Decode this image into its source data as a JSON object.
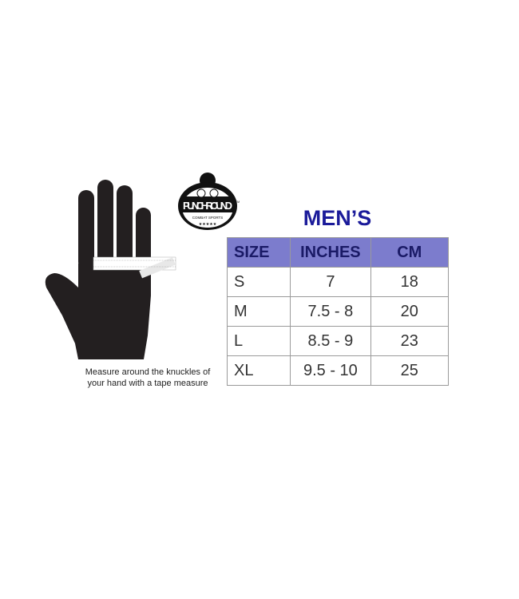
{
  "caption": [
    "Measure around the knuckles of",
    "your hand with a tape measure"
  ],
  "logo": {
    "text": "PUNCH ROUND",
    "subtext": "COMBAT SPORTS",
    "mark": "TM"
  },
  "title": "MEN’S",
  "table": {
    "headers": [
      "SIZE",
      "INCHES",
      "CM"
    ],
    "rows": [
      [
        "S",
        "7",
        "18"
      ],
      [
        "M",
        "7.5 - 8",
        "20"
      ],
      [
        "L",
        "8.5 - 9",
        "23"
      ],
      [
        "XL",
        "9.5 - 10",
        "25"
      ]
    ]
  },
  "colors": {
    "header_bg": "#7c7ccd",
    "title": "#1b1b9a",
    "hand": "#231f20"
  }
}
